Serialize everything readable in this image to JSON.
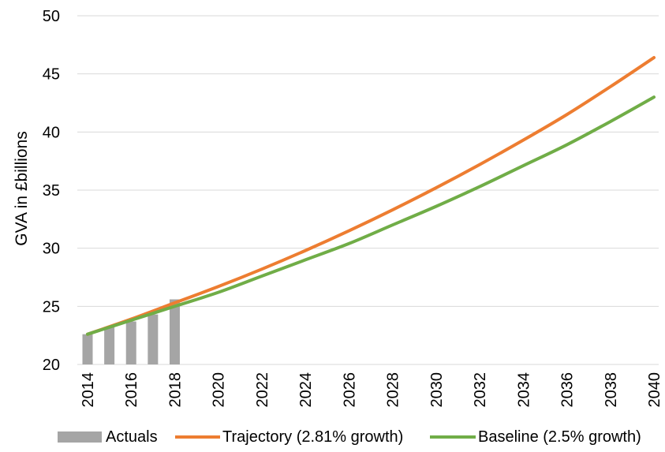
{
  "chart_data": {
    "type": "bar+line",
    "ylabel": "GVA in £billions",
    "ylim": [
      20,
      50
    ],
    "yticks": [
      20,
      25,
      30,
      35,
      40,
      45,
      50
    ],
    "xlim": [
      2014,
      2040
    ],
    "xticks": [
      2014,
      2016,
      2018,
      2020,
      2022,
      2024,
      2026,
      2028,
      2030,
      2032,
      2034,
      2036,
      2038,
      2040
    ],
    "grid": "horizontal",
    "legend_position": "bottom",
    "bars": {
      "name": "Actuals",
      "color": "#a5a5a5",
      "x": [
        2014,
        2015,
        2016,
        2017,
        2018
      ],
      "values": [
        22.6,
        23.2,
        23.7,
        24.3,
        25.6
      ]
    },
    "series": [
      {
        "name": "Trajectory (2.81% growth)",
        "color": "#ed7d31",
        "x": [
          2014,
          2016,
          2018,
          2020,
          2022,
          2024,
          2026,
          2028,
          2030,
          2032,
          2034,
          2036,
          2038,
          2040
        ],
        "values": [
          22.6,
          23.9,
          25.3,
          26.7,
          28.2,
          29.8,
          31.5,
          33.3,
          35.2,
          37.2,
          39.3,
          41.5,
          43.9,
          46.4
        ]
      },
      {
        "name": "Baseline (2.5% growth)",
        "color": "#70ad47",
        "x": [
          2014,
          2016,
          2018,
          2020,
          2022,
          2024,
          2026,
          2028,
          2030,
          2032,
          2034,
          2036,
          2038,
          2040
        ],
        "values": [
          22.6,
          23.8,
          25.0,
          26.2,
          27.6,
          29.0,
          30.4,
          32.0,
          33.6,
          35.3,
          37.1,
          38.9,
          40.9,
          43.0
        ]
      }
    ]
  }
}
